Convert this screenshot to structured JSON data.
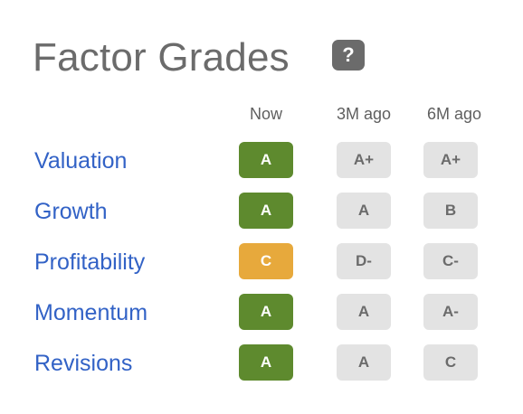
{
  "header": {
    "title": "Factor Grades",
    "help_glyph": "?",
    "help_icon": "question-mark-icon"
  },
  "columns": [
    "Now",
    "3M ago",
    "6M ago"
  ],
  "colors": {
    "grade_a": "#5e8a2e",
    "grade_c": "#e7a93c",
    "grade_past_bg": "#e3e3e3",
    "label_link": "#3262c6"
  },
  "rows": [
    {
      "label": "Valuation",
      "now": "A",
      "m3": "A+",
      "m6": "A+"
    },
    {
      "label": "Growth",
      "now": "A",
      "m3": "A",
      "m6": "B"
    },
    {
      "label": "Profitability",
      "now": "C",
      "m3": "D-",
      "m6": "C-"
    },
    {
      "label": "Momentum",
      "now": "A",
      "m3": "A",
      "m6": "A-"
    },
    {
      "label": "Revisions",
      "now": "A",
      "m3": "A",
      "m6": "C"
    }
  ]
}
